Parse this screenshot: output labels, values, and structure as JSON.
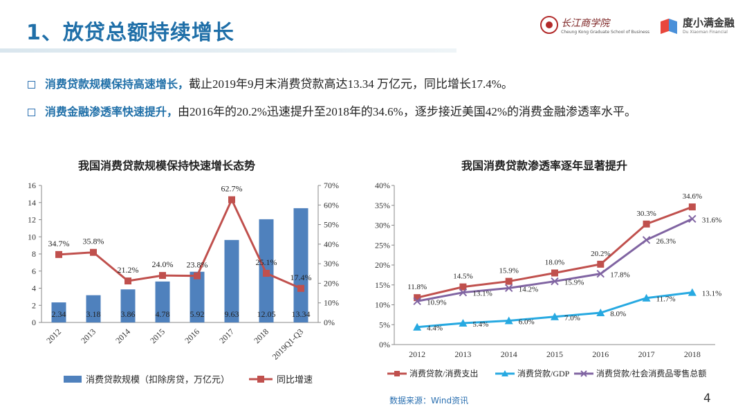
{
  "header": {
    "title": "1、放贷总额持续增长"
  },
  "logos": {
    "ckgsb_cn": "长江商学院",
    "ckgsb_en": "Cheung Kong Graduate School of Business",
    "dxm_cn": "度小满金融",
    "dxm_en": "Du Xiaoman Financial"
  },
  "bullets": [
    {
      "highlight": "消费贷款规模保持高速增长，",
      "text": "截止2019年9月末消费贷款高达13.34 万亿元，同比增长17.4%。"
    },
    {
      "highlight": "消费金融渗透率快速提升，",
      "text": "由2016年的20.2%迅速提升至2018年的34.6%，逐步接近美国42%的消费金融渗透率水平。"
    }
  ],
  "footer": {
    "source": "数据来源：Wind资讯",
    "page": "4"
  },
  "colors": {
    "bar": "#4f81bd",
    "red": "#c0504d",
    "cyan": "#27a9e1",
    "purple": "#8064a2",
    "title_blue": "#1f6fa8"
  },
  "chart_data": [
    {
      "type": "bar",
      "title": "我国消费贷款规模保持快速增长态势",
      "categories": [
        "2012",
        "2013",
        "2014",
        "2015",
        "2016",
        "2017",
        "2018",
        "2019Q1-Q3"
      ],
      "series": [
        {
          "name": "消费贷款规模（扣除房贷，万亿元）",
          "kind": "bar",
          "axis": "left",
          "values": [
            2.34,
            3.18,
            3.86,
            4.78,
            5.92,
            9.63,
            12.05,
            13.34
          ],
          "labels": [
            "2.34",
            "3.18",
            "3.86",
            "4.78",
            "5.92",
            "9.63",
            "12.05",
            "13.34"
          ]
        },
        {
          "name": "同比增速",
          "kind": "line",
          "axis": "right",
          "values": [
            34.7,
            35.8,
            21.2,
            24.0,
            23.8,
            62.7,
            25.1,
            17.4
          ],
          "labels": [
            "34.7%",
            "35.8%",
            "21.2%",
            "24.0%",
            "23.8%",
            "62.7%",
            "25.1%",
            "17.4%"
          ]
        }
      ],
      "y_left": {
        "min": 0,
        "max": 16,
        "ticks": [
          "0",
          "2",
          "4",
          "6",
          "8",
          "10",
          "12",
          "14",
          "16"
        ]
      },
      "y_right": {
        "min": 0,
        "max": 70,
        "ticks": [
          "0%",
          "10%",
          "20%",
          "30%",
          "40%",
          "50%",
          "60%",
          "70%"
        ]
      },
      "legend": "bottom"
    },
    {
      "type": "line",
      "title": "我国消费贷款渗透率逐年显著提升",
      "categories": [
        "2012",
        "2013",
        "2014",
        "2015",
        "2016",
        "2017",
        "2018"
      ],
      "series": [
        {
          "name": "消费贷款/消费支出",
          "values": [
            11.8,
            14.5,
            15.9,
            18.0,
            20.2,
            30.3,
            34.6
          ],
          "labels": [
            "11.8%",
            "14.5%",
            "15.9%",
            "18.0%",
            "20.2%",
            "30.3%",
            "34.6%"
          ]
        },
        {
          "name": "消费贷款/GDP",
          "values": [
            4.4,
            5.4,
            6.0,
            7.0,
            8.0,
            11.7,
            13.1
          ],
          "labels": [
            "4.4%",
            "5.4%",
            "6.0%",
            "7.0%",
            "8.0%",
            "11.7%",
            "13.1%"
          ]
        },
        {
          "name": "消费贷款/社会消费品零售总额",
          "values": [
            10.9,
            13.1,
            14.2,
            15.9,
            17.8,
            26.3,
            31.6
          ],
          "labels": [
            "10.9%",
            "13.1%",
            "14.2%",
            "15.9%",
            "17.8%",
            "26.3%",
            "31.6%"
          ]
        }
      ],
      "y": {
        "min": 0,
        "max": 40,
        "ticks": [
          "0%",
          "5%",
          "10%",
          "15%",
          "20%",
          "25%",
          "30%",
          "35%",
          "40%"
        ]
      },
      "legend": "bottom"
    }
  ]
}
